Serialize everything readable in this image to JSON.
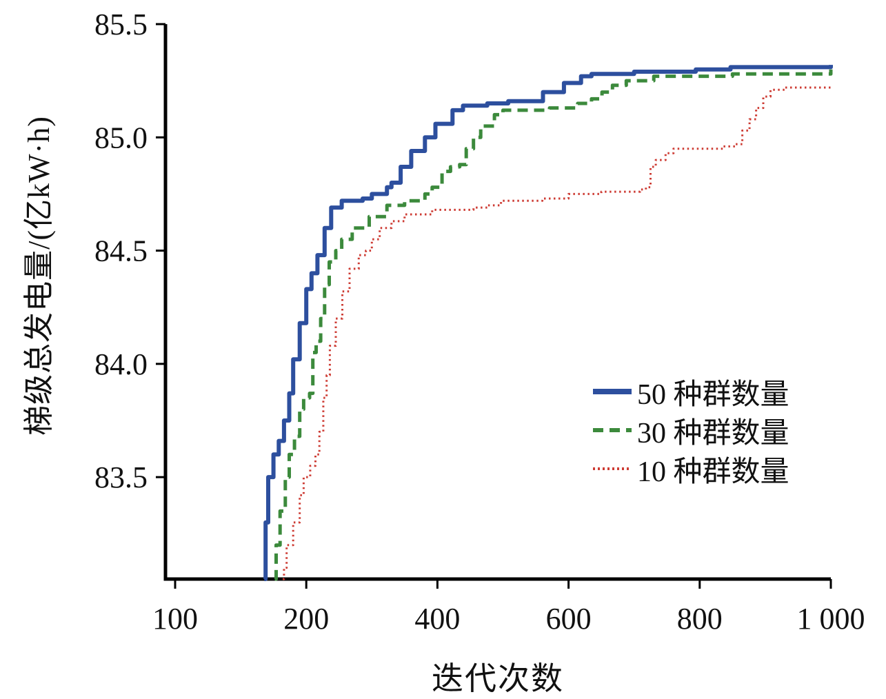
{
  "chart_data": {
    "type": "line",
    "title": "",
    "xlabel": "迭代次数",
    "ylabel": "梯级总发电量/(亿kW·h)",
    "grid": false,
    "legend_position": "inside-right-middle",
    "ylim": [
      83.05,
      85.5
    ],
    "x_ticks": {
      "values": [
        100,
        200,
        400,
        600,
        800,
        1000
      ],
      "labels": [
        "100",
        "200",
        "400",
        "600",
        "800",
        "1 000"
      ],
      "note": "tick marks equally spaced in source figure"
    },
    "y_ticks": {
      "values": [
        83.5,
        84.0,
        84.5,
        85.0,
        85.5
      ],
      "labels": [
        "83.5",
        "84.0",
        "84.5",
        "85.0",
        "85.5"
      ]
    },
    "series": [
      {
        "name": "50 种群数量",
        "color": "#2d4f9e",
        "style": "solid",
        "width": 6,
        "points": [
          [
            168,
            83.05
          ],
          [
            169,
            83.3
          ],
          [
            171,
            83.5
          ],
          [
            175,
            83.6
          ],
          [
            179,
            83.66
          ],
          [
            183,
            83.75
          ],
          [
            187,
            83.87
          ],
          [
            190,
            84.02
          ],
          [
            195,
            84.18
          ],
          [
            200,
            84.33
          ],
          [
            208,
            84.4
          ],
          [
            217,
            84.48
          ],
          [
            228,
            84.6
          ],
          [
            238,
            84.69
          ],
          [
            254,
            84.72
          ],
          [
            286,
            84.73
          ],
          [
            300,
            84.75
          ],
          [
            323,
            84.78
          ],
          [
            330,
            84.8
          ],
          [
            344,
            84.87
          ],
          [
            360,
            84.94
          ],
          [
            381,
            85.0
          ],
          [
            397,
            85.06
          ],
          [
            423,
            85.12
          ],
          [
            439,
            85.14
          ],
          [
            476,
            85.15
          ],
          [
            508,
            85.16
          ],
          [
            561,
            85.2
          ],
          [
            593,
            85.24
          ],
          [
            619,
            85.27
          ],
          [
            635,
            85.28
          ],
          [
            700,
            85.29
          ],
          [
            794,
            85.3
          ],
          [
            847,
            85.31
          ],
          [
            1000,
            85.32
          ]
        ]
      },
      {
        "name": "30 种群数量",
        "color": "#3c8a3c",
        "style": "dashed",
        "width": 5,
        "points": [
          [
            176,
            83.05
          ],
          [
            177,
            83.2
          ],
          [
            180,
            83.35
          ],
          [
            184,
            83.5
          ],
          [
            187,
            83.6
          ],
          [
            191,
            83.68
          ],
          [
            195,
            83.8
          ],
          [
            198,
            83.85
          ],
          [
            205,
            83.87
          ],
          [
            210,
            84.05
          ],
          [
            215,
            84.1
          ],
          [
            222,
            84.2
          ],
          [
            228,
            84.35
          ],
          [
            235,
            84.45
          ],
          [
            245,
            84.5
          ],
          [
            254,
            84.55
          ],
          [
            270,
            84.6
          ],
          [
            296,
            84.65
          ],
          [
            323,
            84.7
          ],
          [
            350,
            84.72
          ],
          [
            381,
            84.75
          ],
          [
            392,
            84.78
          ],
          [
            407,
            84.85
          ],
          [
            420,
            84.87
          ],
          [
            434,
            84.88
          ],
          [
            444,
            84.95
          ],
          [
            455,
            85.0
          ],
          [
            466,
            85.05
          ],
          [
            487,
            85.1
          ],
          [
            500,
            85.12
          ],
          [
            571,
            85.13
          ],
          [
            614,
            85.15
          ],
          [
            635,
            85.17
          ],
          [
            651,
            85.2
          ],
          [
            667,
            85.23
          ],
          [
            688,
            85.25
          ],
          [
            730,
            85.27
          ],
          [
            850,
            85.28
          ],
          [
            1000,
            85.3
          ]
        ]
      },
      {
        "name": "10 种群数量",
        "color": "#cd3b33",
        "style": "dotted",
        "width": 3,
        "points": [
          [
            182,
            83.05
          ],
          [
            183,
            83.1
          ],
          [
            185,
            83.2
          ],
          [
            190,
            83.3
          ],
          [
            195,
            83.42
          ],
          [
            198,
            83.5
          ],
          [
            206,
            83.55
          ],
          [
            214,
            83.6
          ],
          [
            220,
            83.7
          ],
          [
            226,
            83.85
          ],
          [
            231,
            83.95
          ],
          [
            236,
            84.08
          ],
          [
            245,
            84.2
          ],
          [
            255,
            84.32
          ],
          [
            266,
            84.42
          ],
          [
            280,
            84.48
          ],
          [
            291,
            84.5
          ],
          [
            300,
            84.55
          ],
          [
            312,
            84.6
          ],
          [
            330,
            84.63
          ],
          [
            350,
            84.66
          ],
          [
            392,
            84.68
          ],
          [
            455,
            84.69
          ],
          [
            476,
            84.7
          ],
          [
            497,
            84.72
          ],
          [
            560,
            84.73
          ],
          [
            600,
            84.75
          ],
          [
            650,
            84.76
          ],
          [
            709,
            84.77
          ],
          [
            718,
            84.78
          ],
          [
            725,
            84.87
          ],
          [
            733,
            84.9
          ],
          [
            748,
            84.93
          ],
          [
            760,
            84.95
          ],
          [
            836,
            84.96
          ],
          [
            855,
            84.97
          ],
          [
            865,
            85.03
          ],
          [
            876,
            85.08
          ],
          [
            886,
            85.13
          ],
          [
            897,
            85.18
          ],
          [
            908,
            85.21
          ],
          [
            930,
            85.22
          ],
          [
            1000,
            85.23
          ]
        ]
      }
    ]
  }
}
